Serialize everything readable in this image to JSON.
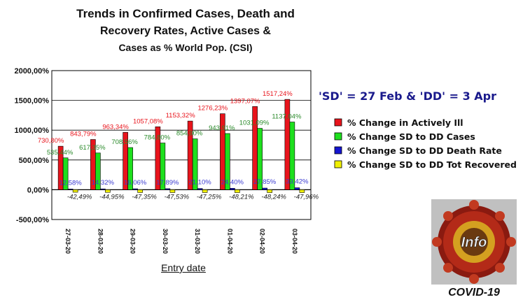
{
  "title_line1": "Trends in Confirmed Cases, Death and",
  "title_line2": "Recovery Rates, Active Cases &",
  "title_line3": "Cases as % World Pop. (CSI)",
  "note": "'SD' = 27 Feb & 'DD' = 3 Apr",
  "logo_text": "Info",
  "logo_caption": "COVID-19",
  "chart_data": {
    "type": "bar",
    "xlabel": "Entry date",
    "ylabel": "",
    "ylim": [
      -500,
      2000
    ],
    "yticks": [
      -500,
      0,
      500,
      1000,
      1500,
      2000
    ],
    "ytick_labels": [
      "-500,00%",
      "0,00%",
      "500,00%",
      "1000,00%",
      "1500,00%",
      "2000,00%"
    ],
    "grid": true,
    "legend_position": "right",
    "categories": [
      "27-03-20",
      "28-03-20",
      "29-03-20",
      "30-03-20",
      "31-03-20",
      "01-04-20",
      "02-04-20",
      "03-04-20"
    ],
    "series": [
      {
        "name": "% Change in Actively Ill",
        "color": "#e8141c",
        "label_color": "#e8141c",
        "values": [
          730.8,
          843.79,
          963.34,
          1057.08,
          1153.32,
          1276.23,
          1397.07,
          1517.24
        ],
        "labels": [
          "730,80%",
          "843,79%",
          "963,34%",
          "1057,08%",
          "1153,32%",
          "1276,23%",
          "1397,07%",
          "1517,24%"
        ]
      },
      {
        "name": "% Change SD to DD Cases",
        "color": "#1ee01e",
        "label_color": "#2a8a2a",
        "values": [
          535.44,
          617.35,
          708.56,
          784.8,
          854.9,
          943.91,
          1031.09,
          1137.04
        ],
        "labels": [
          "535,44%",
          "617,35%",
          "708,56%",
          "784,80%",
          "854,90%",
          "943,91%",
          "1031,09%",
          "1137,04%"
        ]
      },
      {
        "name": "% Change SD to DD Death Rate",
        "color": "#1414d0",
        "label_color": "#3a3ad0",
        "values": [
          12.58,
          14.32,
          16.06,
          17.89,
          21.1,
          24.4,
          27.85,
          33.42
        ],
        "labels": [
          "12,58%",
          "14,32%",
          "16,06%",
          "17,89%",
          "21,10%",
          "24,40%",
          "27,85%",
          "33,42%"
        ]
      },
      {
        "name": "% Change SD to DD Tot Recovered",
        "color": "#f0f000",
        "label_color": "#222222",
        "values": [
          -42.49,
          -44.95,
          -47.35,
          -47.53,
          -47.25,
          -48.21,
          -48.24,
          -47.96
        ],
        "labels": [
          "-42,49%",
          "-44,95%",
          "-47,35%",
          "-47,53%",
          "-47,25%",
          "-48,21%",
          "-48,24%",
          "-47,96%"
        ]
      }
    ]
  }
}
